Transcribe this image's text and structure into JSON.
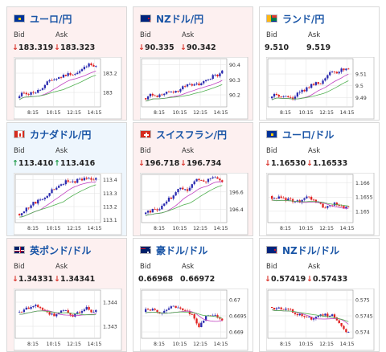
{
  "labels": {
    "bid": "Bid",
    "ask": "Ask"
  },
  "colors": {
    "down": "#d9332b",
    "up": "#1a9945",
    "candle_up": "#2b2bb0",
    "candle_down": "#e02020",
    "ma": "#c040c0",
    "ma2": "#50b050"
  },
  "xticks": [
    "8:15",
    "10:15",
    "12:15",
    "14:15"
  ],
  "cards": [
    {
      "pair": "ユーロ/円",
      "flag": "eu-jp",
      "bid": "183.319",
      "ask": "183.323",
      "bid_dir": "down",
      "ask_dir": "down",
      "bg": "down",
      "chart_data": {
        "type": "candlestick",
        "yticks": [
          "183.2",
          "183"
        ],
        "ylim": [
          182.85,
          183.35
        ],
        "trend": "up"
      }
    },
    {
      "pair": "NZドル/円",
      "flag": "nz-jp",
      "bid": "90.335",
      "ask": "90.342",
      "bid_dir": "down",
      "ask_dir": "down",
      "bg": "down",
      "chart_data": {
        "type": "candlestick",
        "yticks": [
          "90.4",
          "90.3",
          "90.2"
        ],
        "ylim": [
          90.12,
          90.44
        ],
        "trend": "up"
      }
    },
    {
      "pair": "ランド/円",
      "flag": "za-jp",
      "bid": "9.510",
      "ask": "9.519",
      "bid_dir": "",
      "ask_dir": "",
      "bg": "flat",
      "chart_data": {
        "type": "candlestick",
        "yticks": [
          "9.51",
          "9.5",
          "9.49"
        ],
        "ylim": [
          9.482,
          9.523
        ],
        "trend": "up"
      }
    },
    {
      "pair": "カナダドル/円",
      "flag": "ca-jp",
      "bid": "113.410",
      "ask": "113.416",
      "bid_dir": "up",
      "ask_dir": "up",
      "bg": "up",
      "chart_data": {
        "type": "candlestick",
        "yticks": [
          "113.4",
          "113.3",
          "113.2",
          "113.1"
        ],
        "ylim": [
          113.08,
          113.44
        ],
        "trend": "up"
      }
    },
    {
      "pair": "スイスフラン/円",
      "flag": "ch-jp",
      "bid": "196.718",
      "ask": "196.734",
      "bid_dir": "down",
      "ask_dir": "down",
      "bg": "down",
      "chart_data": {
        "type": "candlestick",
        "yticks": [
          "196.6",
          "196.4"
        ],
        "ylim": [
          196.25,
          196.8
        ],
        "trend": "up"
      }
    },
    {
      "pair": "ユーロ/ドル",
      "flag": "eu-us",
      "bid": "1.16530",
      "ask": "1.16533",
      "bid_dir": "down",
      "ask_dir": "down",
      "bg": "flat",
      "chart_data": {
        "type": "candlestick",
        "yticks": [
          "1.166",
          "1.1655",
          "1.165"
        ],
        "ylim": [
          1.1646,
          1.1663
        ],
        "trend": "flat"
      }
    },
    {
      "pair": "英ポンド/ドル",
      "flag": "gb-us",
      "bid": "1.34331",
      "ask": "1.34341",
      "bid_dir": "down",
      "ask_dir": "down",
      "bg": "down",
      "chart_data": {
        "type": "candlestick",
        "yticks": [
          "1.344",
          "1.343"
        ],
        "ylim": [
          1.3425,
          1.3445
        ],
        "trend": "flat"
      }
    },
    {
      "pair": "豪ドル/ドル",
      "flag": "au-us",
      "bid": "0.66968",
      "ask": "0.66972",
      "bid_dir": "",
      "ask_dir": "",
      "bg": "flat",
      "chart_data": {
        "type": "candlestick",
        "yticks": [
          "0.67",
          "0.6695",
          "0.669"
        ],
        "ylim": [
          0.6688,
          0.6703
        ],
        "trend": "flat"
      }
    },
    {
      "pair": "NZドル/ドル",
      "flag": "nz-us",
      "bid": "0.57419",
      "ask": "0.57433",
      "bid_dir": "down",
      "ask_dir": "down",
      "bg": "flat",
      "chart_data": {
        "type": "candlestick",
        "yticks": [
          "0.575",
          "0.5745",
          "0.574"
        ],
        "ylim": [
          0.5738,
          0.5753
        ],
        "trend": "down"
      }
    }
  ]
}
